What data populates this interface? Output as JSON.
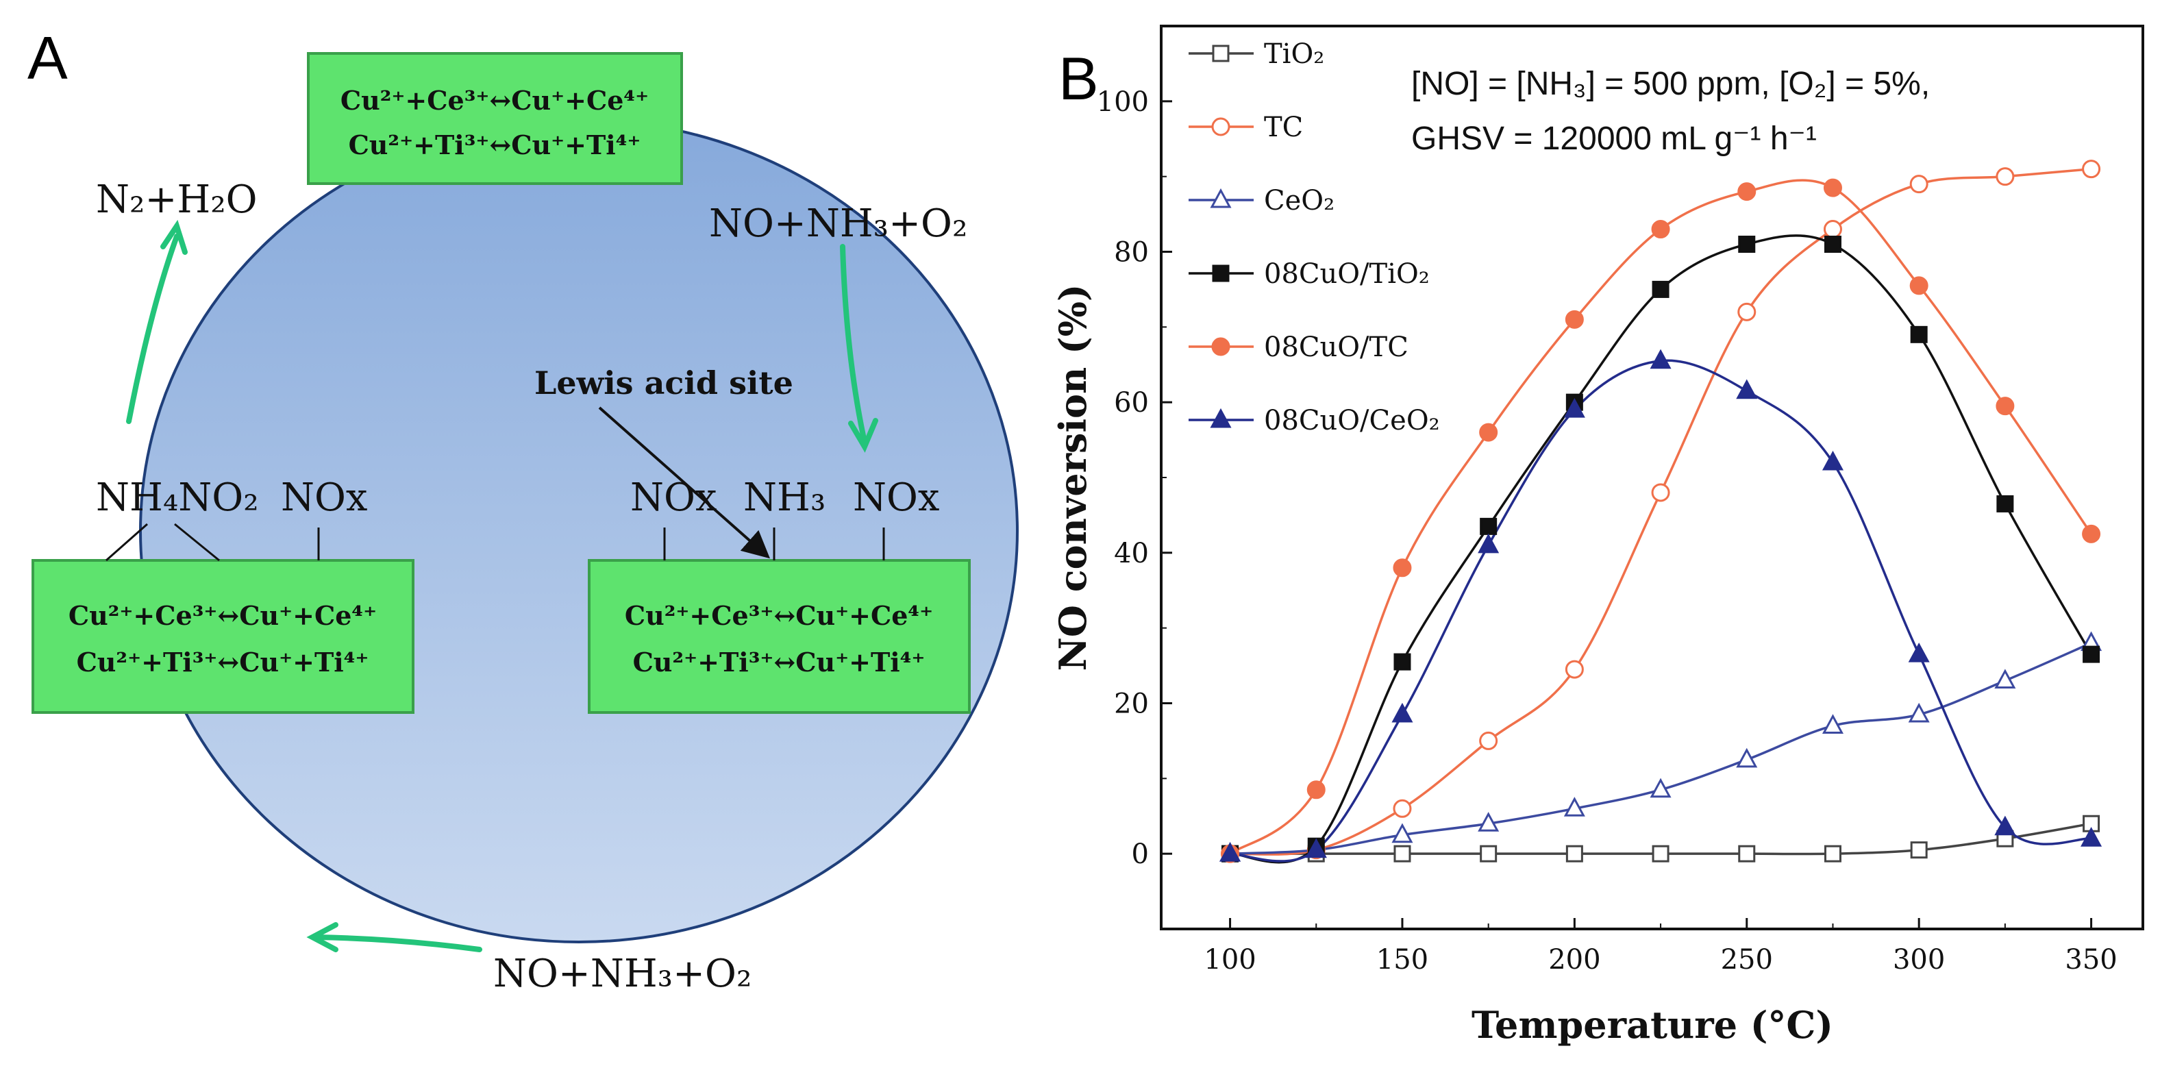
{
  "panel_a": {
    "label": "A",
    "top_box": {
      "line1": "Cu²⁺+Ce³⁺↔Cu⁺+Ce⁴⁺",
      "line2": "Cu²⁺+Ti³⁺↔Cu⁺+Ti⁴⁺"
    },
    "left_box": {
      "line1": "Cu²⁺+Ce³⁺↔Cu⁺+Ce⁴⁺",
      "line2": "Cu²⁺+Ti³⁺↔Cu⁺+Ti⁴⁺"
    },
    "right_box": {
      "line1": "Cu²⁺+Ce³⁺↔Cu⁺+Ce⁴⁺",
      "line2": "Cu²⁺+Ti³⁺↔Cu⁺+Ti⁴⁺"
    },
    "products": "N₂+H₂O",
    "reactants_top": "NO+NH₃+O₂",
    "reactants_bottom": "NO+NH₃+O₂",
    "lewis_label": "Lewis acid site",
    "nh4no2": "NH₄NO₂",
    "nox_left": "NOx",
    "nox_right_a": "NOx",
    "nh3_right": "NH₃",
    "nox_right_b": "NOx",
    "colors": {
      "ellipse_light": "#c9d9f0",
      "ellipse_dark": "#86a9db",
      "box": "#5ee36e",
      "arrow": "#23c47a"
    }
  },
  "chart_data": {
    "panel_label": "B",
    "type": "line",
    "xlabel": "Temperature (°C)",
    "ylabel": "NO conversion (%)",
    "xlim": [
      80,
      365
    ],
    "ylim": [
      -10,
      110
    ],
    "xticks": [
      100,
      150,
      200,
      250,
      300,
      350
    ],
    "yticks": [
      0,
      20,
      40,
      60,
      80,
      100
    ],
    "x": [
      100,
      125,
      150,
      175,
      200,
      225,
      250,
      275,
      300,
      325,
      350
    ],
    "conditions_line1": "[NO] = [NH₃] = 500 ppm, [O₂] = 5%,",
    "conditions_line2": "GHSV = 120000 mL g⁻¹ h⁻¹",
    "series": [
      {
        "name": "TiO₂",
        "color": "#444444",
        "marker": "square",
        "filled": false,
        "values": [
          0,
          0,
          0,
          0,
          0,
          0,
          0,
          0,
          0.5,
          2,
          4
        ]
      },
      {
        "name": "TC",
        "color": "#f0704a",
        "marker": "circle",
        "filled": false,
        "values": [
          0,
          0.5,
          6,
          15,
          24.5,
          48,
          72,
          83,
          89,
          90,
          91
        ]
      },
      {
        "name": "CeO₂",
        "color": "#3c4aa0",
        "marker": "triangle",
        "filled": false,
        "values": [
          0,
          0.5,
          2.5,
          4,
          6,
          8.5,
          12.5,
          17,
          18.5,
          23,
          28
        ]
      },
      {
        "name": "08CuO/TiO₂",
        "color": "#111111",
        "marker": "square",
        "filled": true,
        "values": [
          0,
          1,
          25.5,
          43.5,
          60,
          75,
          81,
          81,
          69,
          46.5,
          26.5
        ]
      },
      {
        "name": "08CuO/TC",
        "color": "#f0704a",
        "marker": "circle",
        "filled": true,
        "values": [
          0,
          8.5,
          38,
          56,
          71,
          83,
          88,
          88.5,
          75.5,
          59.5,
          42.5
        ]
      },
      {
        "name": "08CuO/CeO₂",
        "color": "#232c8c",
        "marker": "triangle",
        "filled": true,
        "values": [
          0,
          0.5,
          18.5,
          41,
          59,
          65.5,
          61.5,
          52,
          26.5,
          3.5,
          2
        ]
      }
    ]
  }
}
